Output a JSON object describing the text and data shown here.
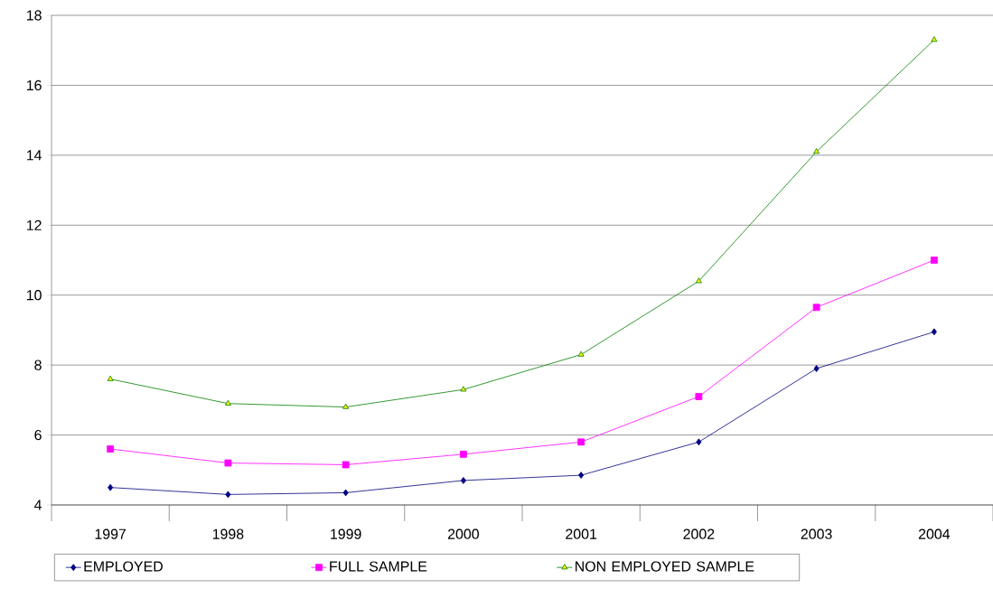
{
  "chart_data": {
    "type": "line",
    "categories": [
      "1997",
      "1998",
      "1999",
      "2000",
      "2001",
      "2002",
      "2003",
      "2004"
    ],
    "series": [
      {
        "name": "EMPLOYED",
        "color": "#000080",
        "marker": "diamond",
        "values": [
          4.5,
          4.3,
          4.35,
          4.7,
          4.85,
          5.8,
          7.9,
          8.95
        ]
      },
      {
        "name": "FULL SAMPLE",
        "color": "#ff00ff",
        "marker": "square",
        "values": [
          5.6,
          5.2,
          5.15,
          5.45,
          5.8,
          7.1,
          9.65,
          11.0
        ]
      },
      {
        "name": "NON EMPLOYED SAMPLE",
        "color": "#008000",
        "marker": "triangle",
        "values": [
          7.6,
          6.9,
          6.8,
          7.3,
          8.3,
          10.4,
          14.1,
          17.3
        ]
      }
    ],
    "ylim": [
      4,
      18
    ],
    "yticks": [
      4,
      6,
      8,
      10,
      12,
      14,
      16,
      18
    ],
    "grid": "y",
    "legend": "bottom",
    "line_style": "solid"
  }
}
